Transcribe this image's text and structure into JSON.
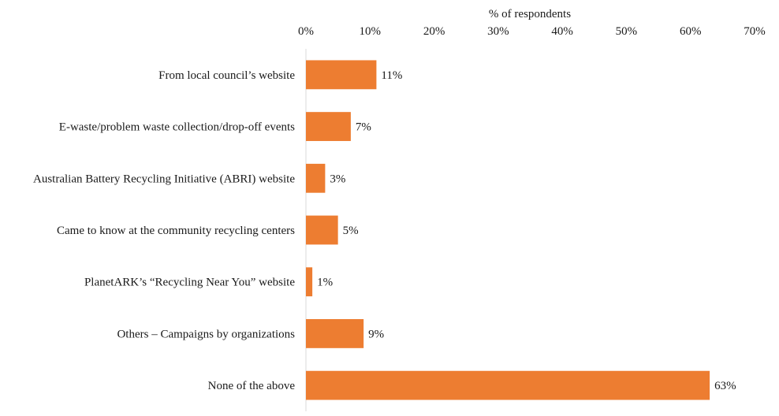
{
  "chart_data": {
    "type": "bar",
    "orientation": "horizontal",
    "xlabel": "% of respondents",
    "axis_position": "top",
    "xlim": [
      0,
      70
    ],
    "ticks": [
      0,
      10,
      20,
      30,
      40,
      50,
      60,
      70
    ],
    "tick_labels": [
      "0%",
      "10%",
      "20%",
      "30%",
      "40%",
      "50%",
      "60%",
      "70%"
    ],
    "categories": [
      "From local council’s website",
      "E-waste/problem waste collection/drop-off events",
      "Australian Battery Recycling Initiative (ABRI) website",
      "Came to know at the community recycling centers",
      "PlanetARK’s “Recycling Near You” website",
      "Others – Campaigns by organizations",
      "None of the above"
    ],
    "values": [
      11,
      7,
      3,
      5,
      1,
      9,
      63
    ],
    "data_labels": [
      "11%",
      "7%",
      "3%",
      "5%",
      "1%",
      "9%",
      "63%"
    ],
    "bar_color": "#ED7D31",
    "grid": false,
    "legend": "none"
  }
}
